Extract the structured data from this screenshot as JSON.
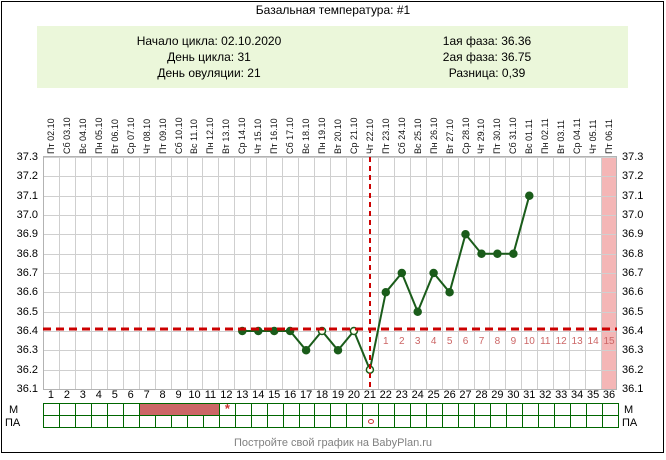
{
  "title": "Базальная температура: #1",
  "info": {
    "left": [
      "Начало цикла: 02.10.2020",
      "День цикла: 31",
      "День овуляции: 21"
    ],
    "right": [
      "1ая фаза: 36.36",
      "2ая фаза: 36.75",
      "Разница: 0,39"
    ]
  },
  "row_labels": {
    "m": "М",
    "pa": "ПА"
  },
  "footer": "Постройте свой график на BabyPlan.ru",
  "markers": {
    "asterisk": "*"
  },
  "colors": {
    "info_bg": "#ebf7da",
    "grid": "#cfcfcf",
    "plot_border": "#b3b3b3",
    "line": "#1a5c1a",
    "open_point_fill": "#ffffee",
    "red_line": "#cc0000",
    "dpo_text": "#cc6666",
    "highlight_col": "#f4b6b6",
    "mens_fill": "#cc6666",
    "cell_border": "#006600",
    "marker_red": "#cc3333",
    "footer_text": "#808080"
  },
  "chart_data": {
    "type": "line",
    "title": "Базальная температура: #1",
    "days": 36,
    "x_dates": [
      "Пт 02.10",
      "Сб 03.10",
      "Вс 04.10",
      "Пн 05.10",
      "Вт 06.10",
      "Ср 07.10",
      "Чт 08.10",
      "Пт 09.10",
      "Сб 10.10",
      "Вс 11.10",
      "Пн 12.10",
      "Вт 13.10",
      "Ср 14.10",
      "Чт 15.10",
      "Пт 16.10",
      "Сб 17.10",
      "Вс 18.10",
      "Пн 19.10",
      "Вт 20.10",
      "Ср 21.10",
      "Чт 22.10",
      "Пт 23.10",
      "Сб 24.10",
      "Вс 25.10",
      "Пн 26.10",
      "Вт 27.10",
      "Ср 28.10",
      "Чт 29.10",
      "Пт 30.10",
      "Сб 31.10",
      "Вс 01.11",
      "Пн 02.11",
      "Вт 03.11",
      "Ср 04.11",
      "Чт 05.11",
      "Пт 06.11"
    ],
    "ylim": [
      36.1,
      37.3
    ],
    "ytick_step": 0.1,
    "yticks": [
      "37.3",
      "37.2",
      "37.1",
      "37.0",
      "36.9",
      "36.8",
      "36.7",
      "36.6",
      "36.5",
      "36.4",
      "36.3",
      "36.2",
      "36.1"
    ],
    "series": [
      {
        "name": "Базальная температура",
        "points": [
          {
            "day": 13,
            "value": 36.4
          },
          {
            "day": 14,
            "value": 36.4
          },
          {
            "day": 15,
            "value": 36.4
          },
          {
            "day": 16,
            "value": 36.4
          },
          {
            "day": 17,
            "value": 36.3
          },
          {
            "day": 18,
            "value": 36.4,
            "open": true
          },
          {
            "day": 19,
            "value": 36.3
          },
          {
            "day": 20,
            "value": 36.4,
            "open": true
          },
          {
            "day": 21,
            "value": 36.2,
            "open": true
          },
          {
            "day": 22,
            "value": 36.6
          },
          {
            "day": 23,
            "value": 36.7
          },
          {
            "day": 24,
            "value": 36.5
          },
          {
            "day": 25,
            "value": 36.7
          },
          {
            "day": 26,
            "value": 36.6
          },
          {
            "day": 27,
            "value": 36.9
          },
          {
            "day": 28,
            "value": 36.8
          },
          {
            "day": 29,
            "value": 36.8
          },
          {
            "day": 30,
            "value": 36.8
          },
          {
            "day": 31,
            "value": 37.1
          }
        ]
      }
    ],
    "coverline": 36.41,
    "ovulation_day": 21,
    "dpo_start_day": 22,
    "dpo_numbers": [
      "1",
      "2",
      "3",
      "4",
      "5",
      "6",
      "7",
      "8",
      "9",
      "10",
      "11",
      "12",
      "13",
      "14",
      "15"
    ],
    "highlight_day": 36,
    "menstruation_days": [
      7,
      8,
      9,
      10,
      11
    ],
    "asterisk_day": 12,
    "pa_mark_day": 21
  }
}
